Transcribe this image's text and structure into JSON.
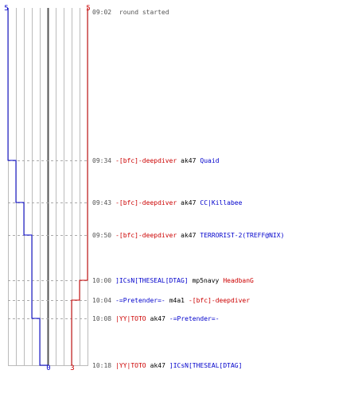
{
  "colors": {
    "blue": "#0000cc",
    "red": "#cc0000",
    "time": "#555555",
    "weapon": "#000000",
    "grid": "#bbbbbb",
    "center": "#555555",
    "dash": "#aaaaaa"
  },
  "scores": {
    "blue_top": "5",
    "red_top": "5",
    "blue_bottom": "0",
    "red_bottom": "3"
  },
  "round_event": {
    "time": "09:02",
    "text": "round started"
  },
  "events": [
    {
      "time": "09:34",
      "killer": "-[bfc]-deepdiver",
      "killer_team": "red",
      "weapon": "ak47",
      "victim": "Quaid",
      "victim_team": "blue"
    },
    {
      "time": "09:43",
      "killer": "-[bfc]-deepdiver",
      "killer_team": "red",
      "weapon": "ak47",
      "victim": "CC|Killabee",
      "victim_team": "blue"
    },
    {
      "time": "09:50",
      "killer": "-[bfc]-deepdiver",
      "killer_team": "red",
      "weapon": "ak47",
      "victim": "TERRORIST-2(TREFF@NIX)",
      "victim_team": "blue"
    },
    {
      "time": "10:00",
      "killer": "]ICsN[THESEAL[DTAG]",
      "killer_team": "blue",
      "weapon": "mp5navy",
      "victim": "HeadbanG",
      "victim_team": "red"
    },
    {
      "time": "10:04",
      "killer": "-=Pretender=-",
      "killer_team": "blue",
      "weapon": "m4a1",
      "victim": "-[bfc]-deepdiver",
      "victim_team": "red"
    },
    {
      "time": "10:08",
      "killer": "|YY|TOTO",
      "killer_team": "red",
      "weapon": "ak47",
      "victim": "-=Pretender=-",
      "victim_team": "blue"
    },
    {
      "time": "10:18",
      "killer": "|YY|TOTO",
      "killer_team": "red",
      "weapon": "ak47",
      "victim": "]ICsN[THESEAL[DTAG]",
      "victim_team": "blue"
    }
  ]
}
